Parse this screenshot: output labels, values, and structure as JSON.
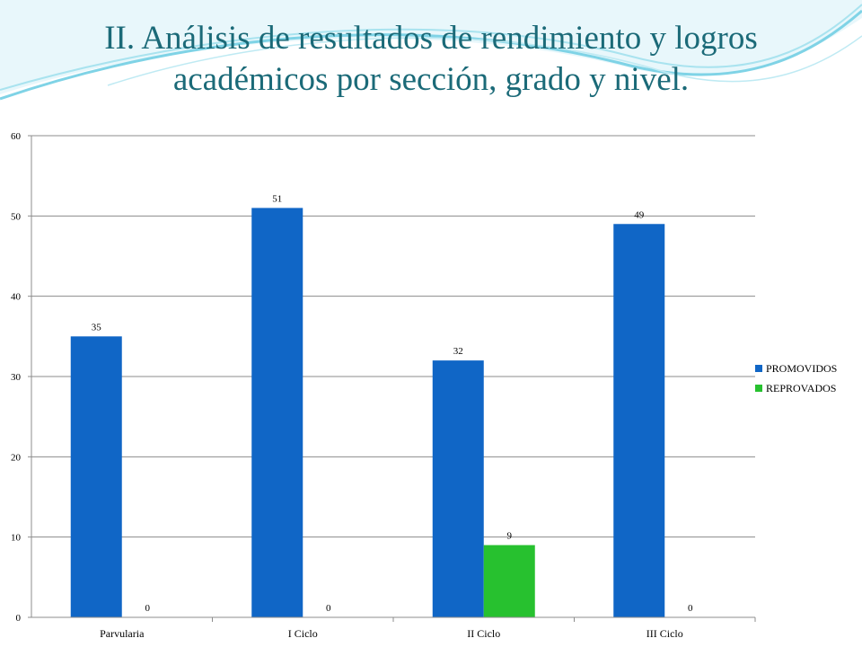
{
  "slide": {
    "title_line1": "II. Análisis de resultados de rendimiento y logros",
    "title_line2": "académicos por sección, grado y nivel."
  },
  "colors": {
    "title": "#1b6a78",
    "promovidos": "#1066c6",
    "reprovados": "#27c12f",
    "gridline": "#8c8c8c",
    "swoosh": "#7fd3e6"
  },
  "chart_data": {
    "type": "bar",
    "categories": [
      "Parvularia",
      "I Ciclo",
      "II Ciclo",
      "III Ciclo"
    ],
    "series": [
      {
        "name": "PROMOVIDOS",
        "values": [
          35,
          51,
          32,
          49
        ]
      },
      {
        "name": "REPROVADOS",
        "values": [
          0,
          0,
          9,
          0
        ]
      }
    ],
    "yticks": [
      0,
      10,
      20,
      30,
      40,
      50,
      60
    ],
    "ylim": [
      0,
      60
    ],
    "grid": true,
    "legend_position": "right",
    "data_labels": true
  }
}
